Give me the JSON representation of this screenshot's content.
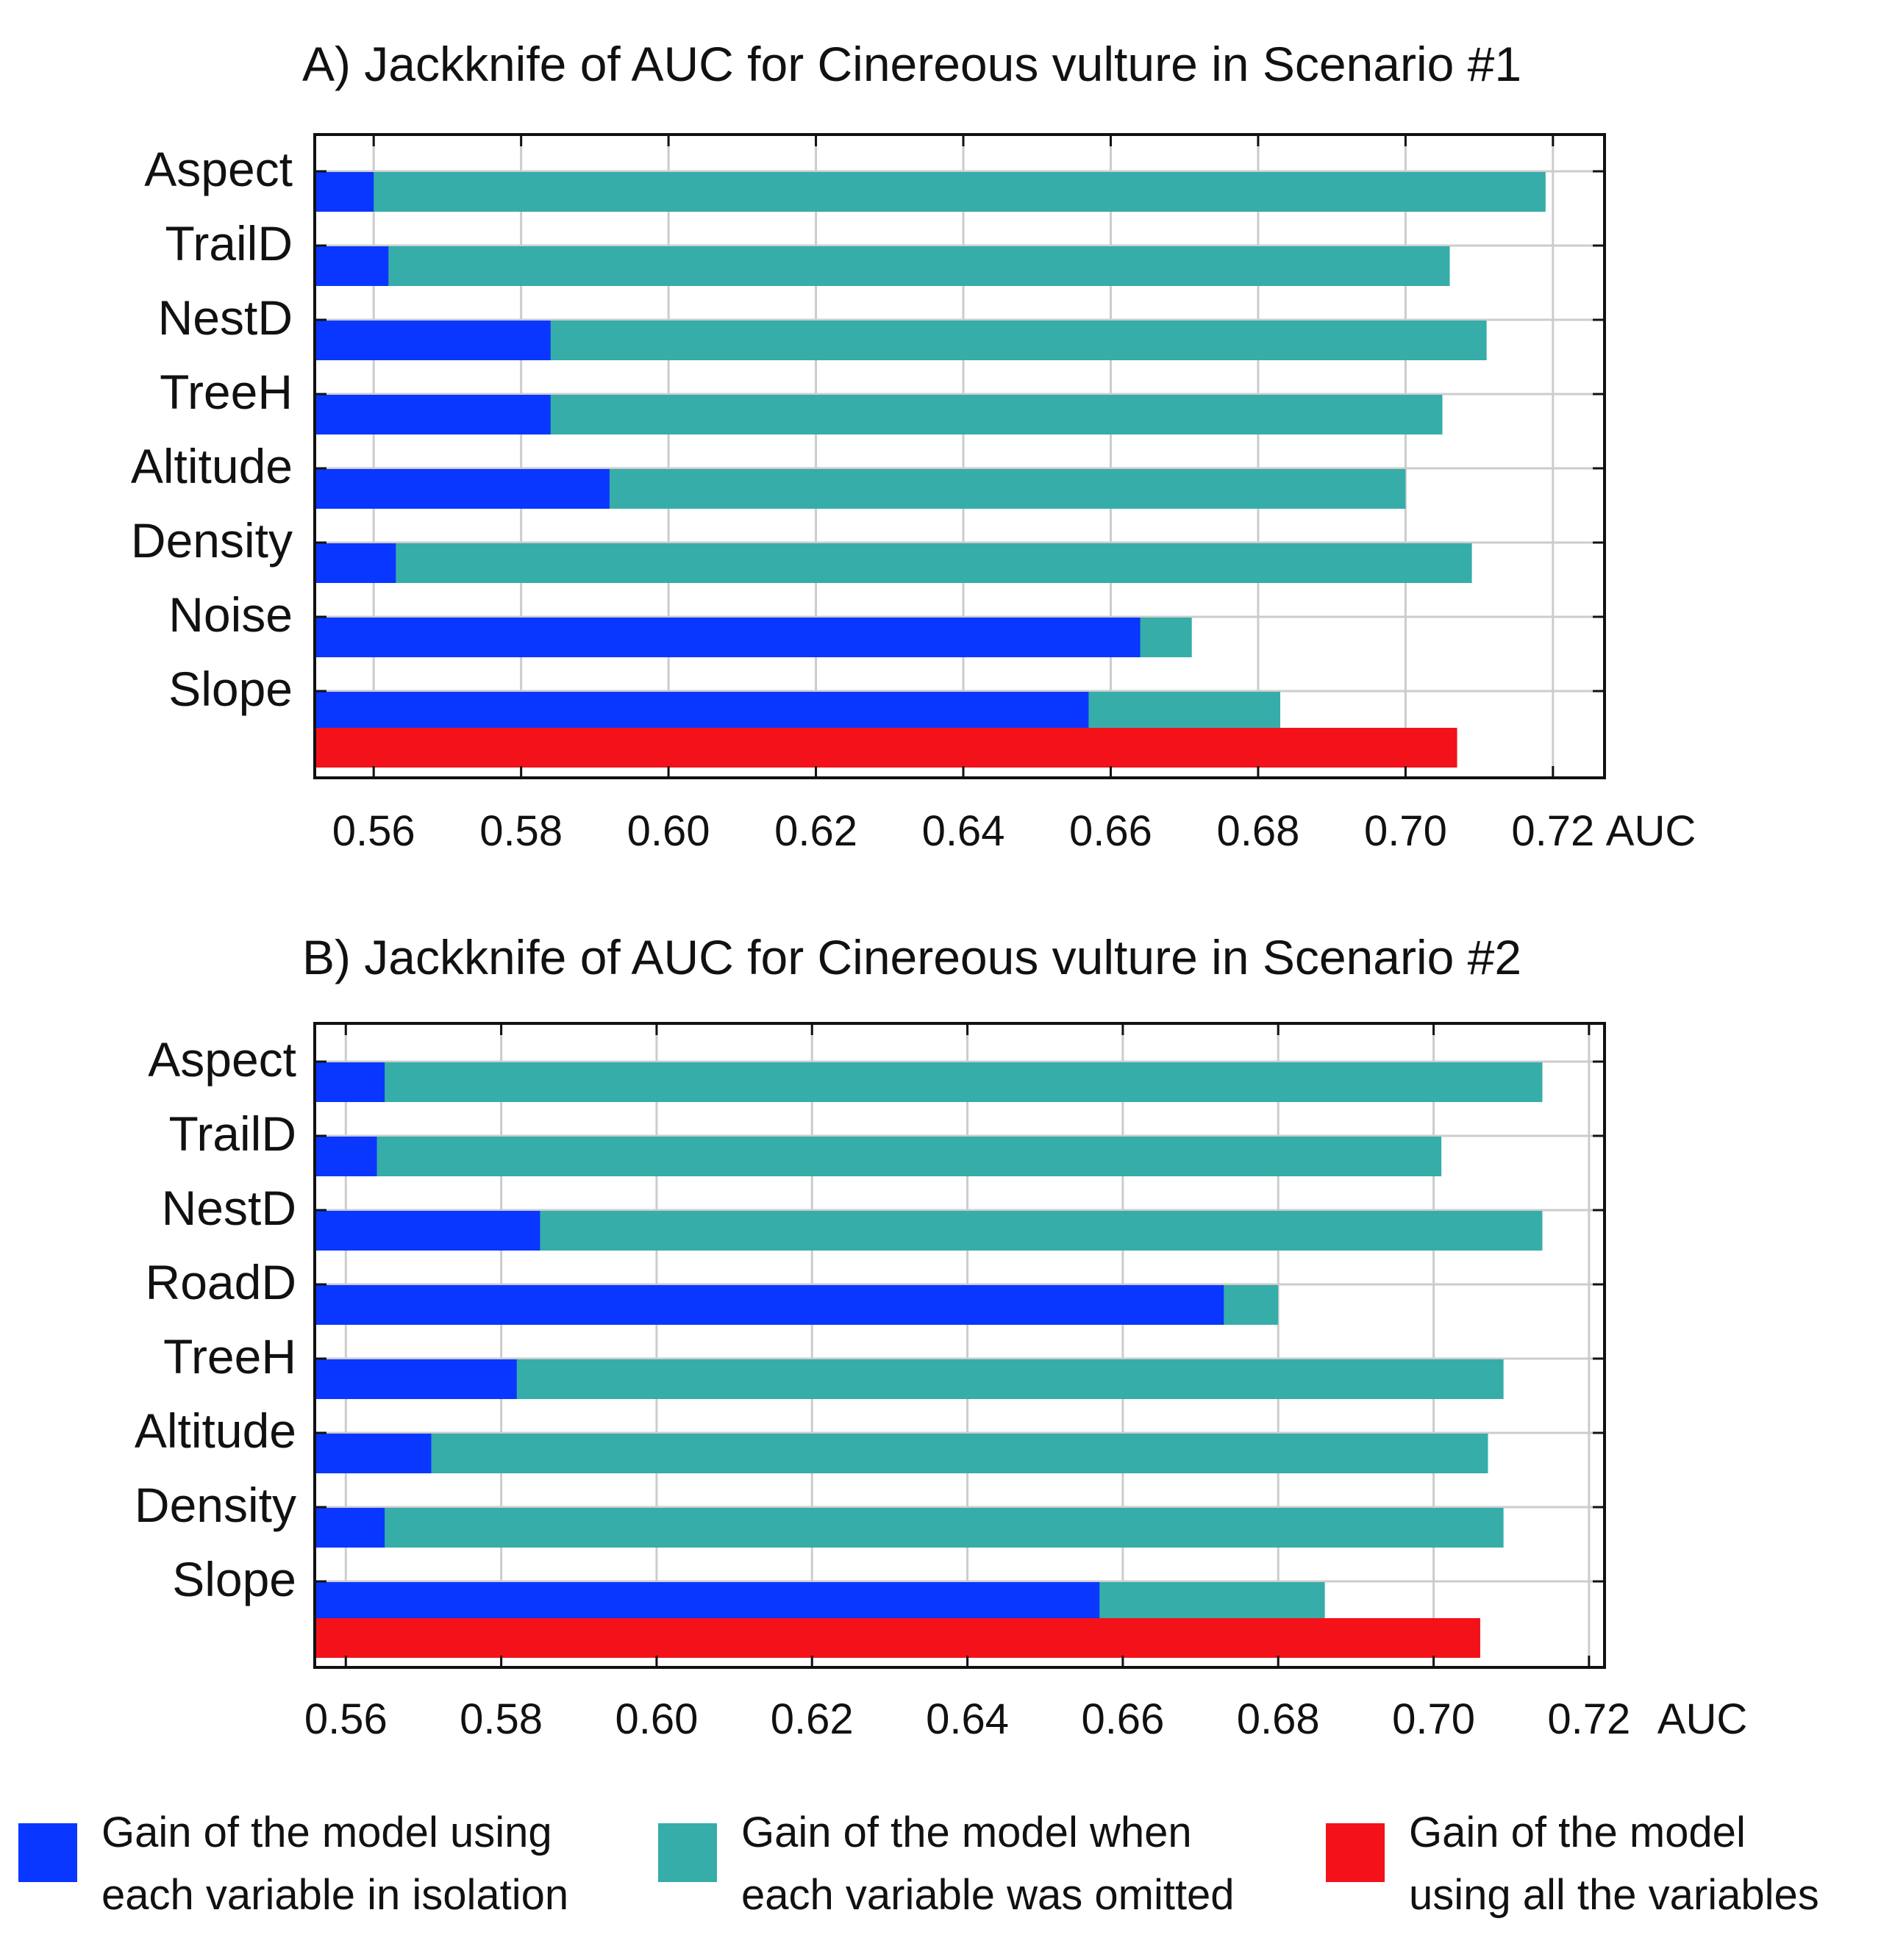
{
  "chart_data": [
    {
      "type": "bar",
      "orientation": "horizontal",
      "title": "A) Jackknife of AUC for Cinereous vulture in Scenario #1",
      "xlabel": "AUC",
      "ylabel": "",
      "xlim": [
        0.552,
        0.727
      ],
      "xticks": [
        0.56,
        0.58,
        0.6,
        0.62,
        0.64,
        0.66,
        0.68,
        0.7,
        0.72
      ],
      "xtick_labels": [
        "0.56",
        "0.58",
        "0.60",
        "0.62",
        "0.64",
        "0.66",
        "0.68",
        "0.70",
        "0.72"
      ],
      "grid": true,
      "categories": [
        "Aspect",
        "TrailD",
        "NestD",
        "TreeH",
        "Altitude",
        "Density",
        "Noise",
        "Slope"
      ],
      "series": [
        {
          "name": "Gain of the model using each variable in isolation",
          "values": [
            0.56,
            0.562,
            0.584,
            0.584,
            0.592,
            0.563,
            0.664,
            0.657
          ]
        },
        {
          "name": "Gain of the model when each variable was omitted",
          "values": [
            0.719,
            0.706,
            0.711,
            0.705,
            0.7,
            0.709,
            0.671,
            0.683
          ]
        }
      ],
      "all_variables_value": 0.707
    },
    {
      "type": "bar",
      "orientation": "horizontal",
      "title": "B) Jackknife of AUC for Cinereous vulture in Scenario #2",
      "xlabel": "AUC",
      "ylabel": "",
      "xlim": [
        0.556,
        0.722
      ],
      "xticks": [
        0.56,
        0.58,
        0.6,
        0.62,
        0.64,
        0.66,
        0.68,
        0.7,
        0.72
      ],
      "xtick_labels": [
        "0.56",
        "0.58",
        "0.60",
        "0.62",
        "0.64",
        "0.66",
        "0.68",
        "0.70",
        "0.72"
      ],
      "grid": true,
      "categories": [
        "Aspect",
        "TrailD",
        "NestD",
        "RoadD",
        "TreeH",
        "Altitude",
        "Density",
        "Slope"
      ],
      "series": [
        {
          "name": "Gain of the model using each variable in isolation",
          "values": [
            0.565,
            0.564,
            0.585,
            0.673,
            0.582,
            0.571,
            0.565,
            0.657
          ]
        },
        {
          "name": "Gain of the model when each variable was omitted",
          "values": [
            0.714,
            0.701,
            0.714,
            0.68,
            0.709,
            0.707,
            0.709,
            0.686
          ]
        }
      ],
      "all_variables_value": 0.706
    }
  ],
  "legend": {
    "items": [
      {
        "line1": "Gain of the model using",
        "line2": "each variable in isolation",
        "color": "#0a37ff"
      },
      {
        "line1": "Gain of the model when",
        "line2": "each variable was omitted",
        "color": "#36ada9"
      },
      {
        "line1": "Gain of the model",
        "line2": "using all the variables",
        "color": "#f3121a"
      }
    ]
  },
  "colors": {
    "isolation": "#0a37ff",
    "omitted": "#36ada9",
    "all": "#f3121a",
    "grid": "#cccccc",
    "axis": "#111111"
  }
}
